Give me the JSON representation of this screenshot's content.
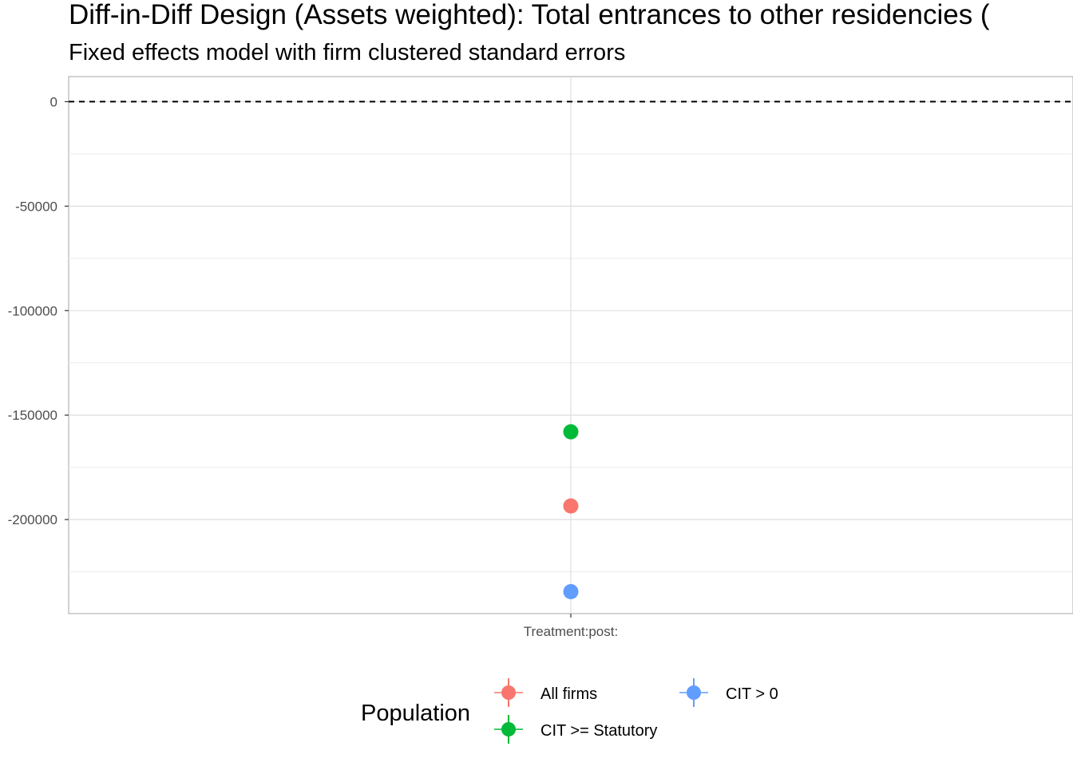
{
  "chart_data": {
    "type": "scatter",
    "title": "Diff-in-Diff Design (Assets weighted): Total entrances to other residencies (",
    "subtitle": "Fixed effects model with firm clustered standard errors",
    "xlabel": "",
    "ylabel": "",
    "categories": [
      "Treatment:post:"
    ],
    "yticks": [
      0,
      -50000,
      -100000,
      -150000,
      -200000
    ],
    "yticklabels": [
      "0",
      "-50000",
      "-100000",
      "-150000",
      "-200000"
    ],
    "ylim": [
      -245000,
      12000
    ],
    "reference_line": {
      "y": 0,
      "style": "dashed"
    },
    "grid": true,
    "legend": {
      "title": "Population",
      "placement": "bottom"
    },
    "series": [
      {
        "name": "All firms",
        "color": "#F8766D",
        "x": "Treatment:post:",
        "y": -193500
      },
      {
        "name": "CIT >= Statutory",
        "color": "#00BA38",
        "x": "Treatment:post:",
        "y": -158000
      },
      {
        "name": "CIT > 0",
        "color": "#619CFF",
        "x": "Treatment:post:",
        "y": -234500
      }
    ]
  }
}
